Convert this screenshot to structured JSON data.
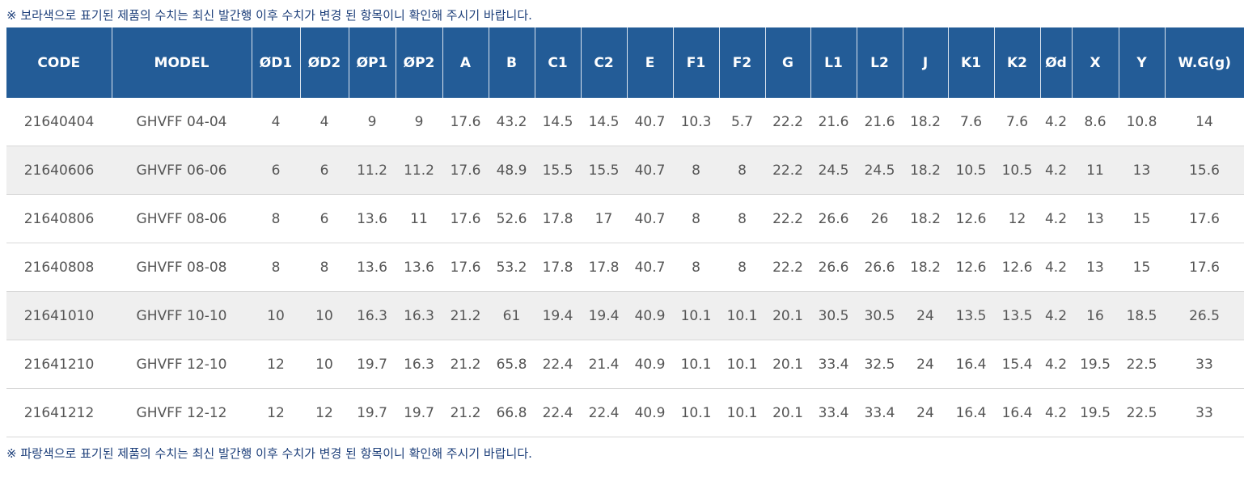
{
  "top_note": "※ 보라색으로 표기된 제품의 수치는 최신 발간행 이후 수치가 변경 된 항목이니 확인해 주시기 바랍니다.",
  "table": {
    "header": [
      "CODE",
      "MODEL",
      "ØD1",
      "ØD2",
      "ØP1",
      "ØP2",
      "A",
      "B",
      "C1",
      "C2",
      "E",
      "F1",
      "F2",
      "G",
      "L1",
      "L2",
      "J",
      "K1",
      "K2",
      "Ød",
      "X",
      "Y",
      "W.G(g)"
    ],
    "rows": [
      [
        "21640404",
        "GHVFF 04-04",
        "4",
        "4",
        "9",
        "9",
        "17.6",
        "43.2",
        "14.5",
        "14.5",
        "40.7",
        "10.3",
        "5.7",
        "22.2",
        "21.6",
        "21.6",
        "18.2",
        "7.6",
        "7.6",
        "4.2",
        "8.6",
        "10.8",
        "14"
      ],
      [
        "21640606",
        "GHVFF 06-06",
        "6",
        "6",
        "11.2",
        "11.2",
        "17.6",
        "48.9",
        "15.5",
        "15.5",
        "40.7",
        "8",
        "8",
        "22.2",
        "24.5",
        "24.5",
        "18.2",
        "10.5",
        "10.5",
        "4.2",
        "11",
        "13",
        "15.6"
      ],
      [
        "21640806",
        "GHVFF 08-06",
        "8",
        "6",
        "13.6",
        "11",
        "17.6",
        "52.6",
        "17.8",
        "17",
        "40.7",
        "8",
        "8",
        "22.2",
        "26.6",
        "26",
        "18.2",
        "12.6",
        "12",
        "4.2",
        "13",
        "15",
        "17.6"
      ],
      [
        "21640808",
        "GHVFF 08-08",
        "8",
        "8",
        "13.6",
        "13.6",
        "17.6",
        "53.2",
        "17.8",
        "17.8",
        "40.7",
        "8",
        "8",
        "22.2",
        "26.6",
        "26.6",
        "18.2",
        "12.6",
        "12.6",
        "4.2",
        "13",
        "15",
        "17.6"
      ],
      [
        "21641010",
        "GHVFF 10-10",
        "10",
        "10",
        "16.3",
        "16.3",
        "21.2",
        "61",
        "19.4",
        "19.4",
        "40.9",
        "10.1",
        "10.1",
        "20.1",
        "30.5",
        "30.5",
        "24",
        "13.5",
        "13.5",
        "4.2",
        "16",
        "18.5",
        "26.5"
      ],
      [
        "21641210",
        "GHVFF 12-10",
        "12",
        "10",
        "19.7",
        "16.3",
        "21.2",
        "65.8",
        "22.4",
        "21.4",
        "40.9",
        "10.1",
        "10.1",
        "20.1",
        "33.4",
        "32.5",
        "24",
        "16.4",
        "15.4",
        "4.2",
        "19.5",
        "22.5",
        "33"
      ],
      [
        "21641212",
        "GHVFF 12-12",
        "12",
        "12",
        "19.7",
        "19.7",
        "21.2",
        "66.8",
        "22.4",
        "22.4",
        "40.9",
        "10.1",
        "10.1",
        "20.1",
        "33.4",
        "33.4",
        "24",
        "16.4",
        "16.4",
        "4.2",
        "19.5",
        "22.5",
        "33"
      ]
    ]
  },
  "bottom_note": "※ 파랑색으로 표기된 제품의 수치는 최신 발간행 이후 수치가 변경 된 항목이니 확인해 주시기 바랍니다."
}
